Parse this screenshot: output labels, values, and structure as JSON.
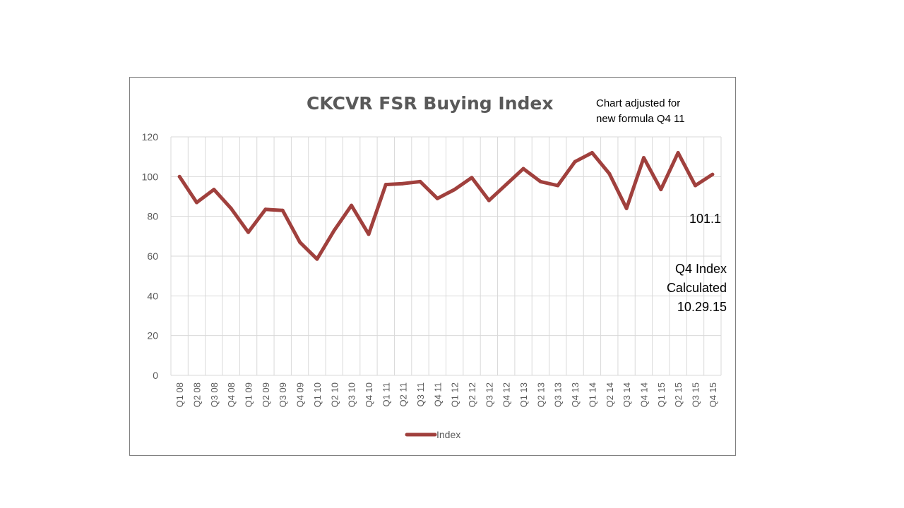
{
  "chart_data": {
    "type": "line",
    "title": "CKCVR FSR Buying Index",
    "categories": [
      "Q1 08",
      "Q2 08",
      "Q3 08",
      "Q4 08",
      "Q1 09",
      "Q2 09",
      "Q3 09",
      "Q4 09",
      "Q1 10",
      "Q2 10",
      "Q3 10",
      "Q4 10",
      "Q1 11",
      "Q2 11",
      "Q3 11",
      "Q4 11",
      "Q1 12",
      "Q2 12",
      "Q3 12",
      "Q4 12",
      "Q1 13",
      "Q2 13",
      "Q3 13",
      "Q4 13",
      "Q1 14",
      "Q2 14",
      "Q3 14",
      "Q4 14",
      "Q1 15",
      "Q2 15",
      "Q3 15",
      "Q4 15"
    ],
    "series": [
      {
        "name": "Index",
        "color": "#a0403d",
        "values": [
          100,
          87,
          93.5,
          84,
          72,
          83.5,
          83,
          67,
          58.5,
          73,
          85.5,
          71,
          96,
          96.5,
          97.5,
          89,
          93.5,
          99.5,
          88,
          96,
          104,
          97.5,
          95.5,
          107.5,
          112,
          101.5,
          84,
          109.5,
          93.5,
          112,
          95.5,
          101.1
        ]
      }
    ],
    "ylim": [
      0,
      120
    ],
    "yticks": [
      0,
      20,
      40,
      60,
      80,
      100,
      120
    ],
    "grid": true,
    "legend_position": "bottom",
    "annotations": {
      "adjusted_line1": "Chart adjusted for",
      "adjusted_line2": "new formula  Q4  11",
      "last_value": "101.1",
      "calc_line1": "Q4 Index",
      "calc_line2": "Calculated",
      "calc_line3": "10.29.15"
    }
  }
}
